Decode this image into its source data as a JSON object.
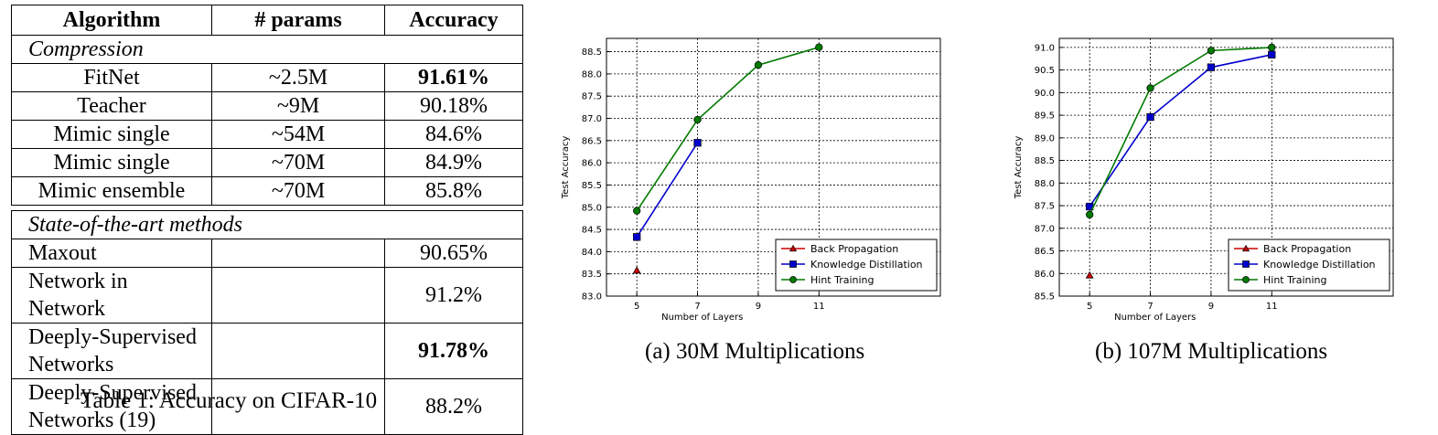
{
  "table": {
    "headers": [
      "Algorithm",
      "# params",
      "Accuracy"
    ],
    "sections": [
      {
        "title": "Compression",
        "rows": [
          {
            "algorithm": "FitNet",
            "params": "~2.5M",
            "accuracy": "91.61%",
            "bold": true
          },
          {
            "algorithm": "Teacher",
            "params": "~9M",
            "accuracy": "90.18%",
            "bold": false
          },
          {
            "algorithm": "Mimic single",
            "params": "~54M",
            "accuracy": "84.6%",
            "bold": false
          },
          {
            "algorithm": "Mimic single",
            "params": "~70M",
            "accuracy": "84.9%",
            "bold": false
          },
          {
            "algorithm": "Mimic ensemble",
            "params": "~70M",
            "accuracy": "85.8%",
            "bold": false
          }
        ]
      },
      {
        "title": "State-of-the-art methods",
        "rows": [
          {
            "algorithm": "Maxout",
            "params": "",
            "accuracy": "90.65%",
            "bold": false
          },
          {
            "algorithm": "Network in Network",
            "params": "",
            "accuracy": "91.2%",
            "bold": false
          },
          {
            "algorithm": "Deeply-Supervised Networks",
            "params": "",
            "accuracy": "91.78%",
            "bold": true
          },
          {
            "algorithm": "Deeply-Supervised Networks (19)",
            "params": "",
            "accuracy": "88.2%",
            "bold": false
          }
        ]
      }
    ],
    "caption": "Table 1: Accuracy on CIFAR-10"
  },
  "chart_data": [
    {
      "type": "line",
      "caption": "(a) 30M Multiplications",
      "xlabel": "Number of Layers",
      "ylabel": "Test Accuracy",
      "xlim": [
        4,
        15
      ],
      "ylim": [
        83.0,
        88.8
      ],
      "xticks": [
        5,
        7,
        9,
        11
      ],
      "yticks": [
        83.0,
        83.5,
        84.0,
        84.5,
        85.0,
        85.5,
        86.0,
        86.5,
        87.0,
        87.5,
        88.0,
        88.5
      ],
      "grid": true,
      "legend_position": "lower-right",
      "series": [
        {
          "name": "Back Propagation",
          "color": "#cc0000",
          "marker": "triangle",
          "x": [
            5
          ],
          "y": [
            83.58
          ]
        },
        {
          "name": "Knowledge Distillation",
          "color": "#0000cc",
          "marker": "square",
          "x": [
            5,
            7
          ],
          "y": [
            84.33,
            86.45
          ]
        },
        {
          "name": "Hint Training",
          "color": "#007a00",
          "marker": "circle",
          "x": [
            5,
            7,
            9,
            11
          ],
          "y": [
            84.92,
            86.97,
            88.2,
            88.6
          ]
        }
      ]
    },
    {
      "type": "line",
      "caption": "(b) 107M Multiplications",
      "xlabel": "Number of Layers",
      "ylabel": "Test Accuracy",
      "xlim": [
        4,
        15
      ],
      "ylim": [
        85.5,
        91.2
      ],
      "xticks": [
        5,
        7,
        9,
        11
      ],
      "yticks": [
        85.5,
        86.0,
        86.5,
        87.0,
        87.5,
        88.0,
        88.5,
        89.0,
        89.5,
        90.0,
        90.5,
        91.0
      ],
      "grid": true,
      "legend_position": "lower-right",
      "series": [
        {
          "name": "Back Propagation",
          "color": "#cc0000",
          "marker": "triangle",
          "x": [
            5
          ],
          "y": [
            85.96
          ]
        },
        {
          "name": "Knowledge Distillation",
          "color": "#0000cc",
          "marker": "square",
          "x": [
            5,
            7,
            9,
            11
          ],
          "y": [
            87.48,
            89.46,
            90.56,
            90.84
          ]
        },
        {
          "name": "Hint Training",
          "color": "#007a00",
          "marker": "circle",
          "x": [
            5,
            7,
            9,
            11
          ],
          "y": [
            87.3,
            90.1,
            90.93,
            91.0
          ]
        }
      ]
    }
  ]
}
